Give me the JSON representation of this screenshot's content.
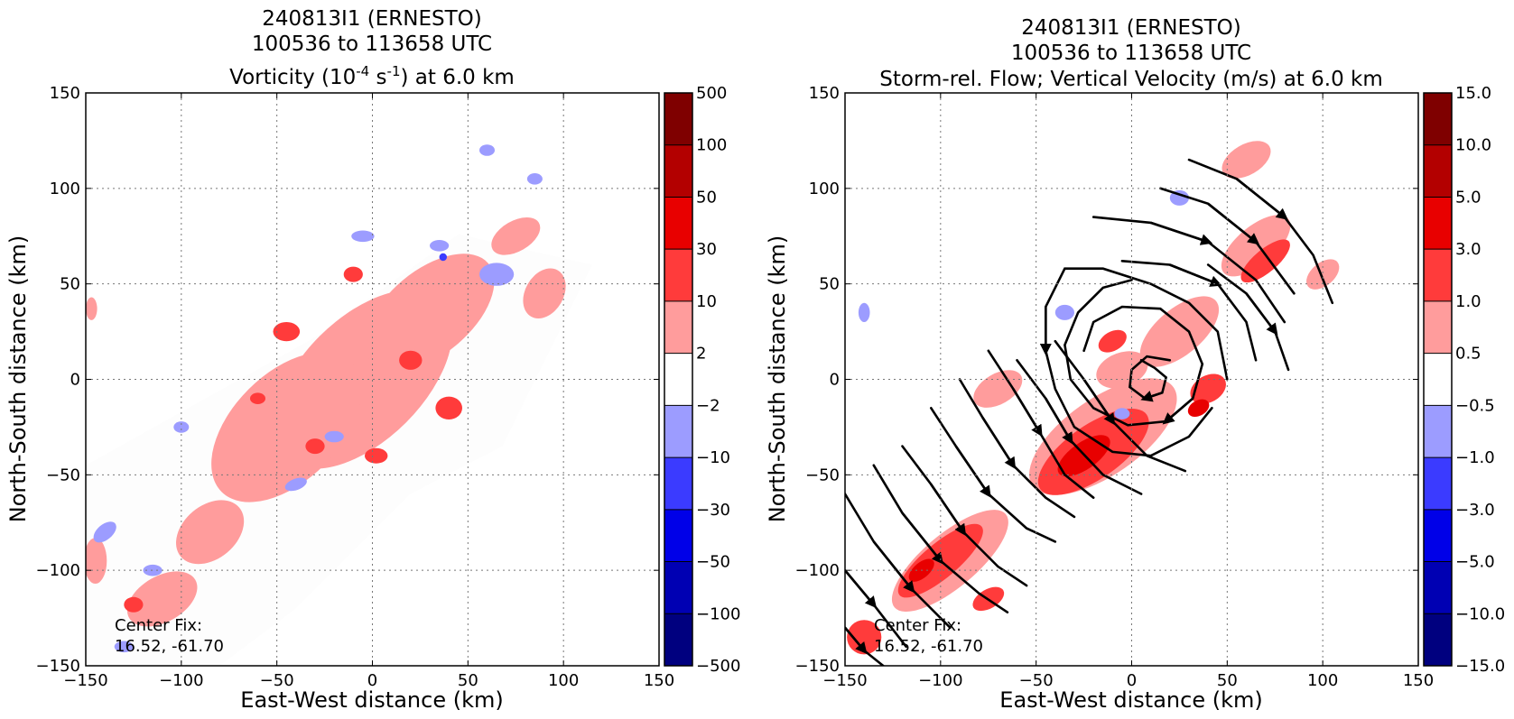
{
  "chart_data": [
    {
      "type": "heatmap",
      "title_lines": [
        "240813I1 (ERNESTO)",
        "100536 to 113658 UTC"
      ],
      "title_var_pre": "Vorticity (10",
      "title_var_sup1": "-4",
      "title_var_mid": " s",
      "title_var_sup2": "-1",
      "title_var_post": ") at 6.0 km",
      "xlabel": "East-West distance (km)",
      "ylabel": "North-South distance (km)",
      "xlim": [
        -150,
        150
      ],
      "ylim": [
        -150,
        150
      ],
      "x_ticks": [
        -150,
        -100,
        -50,
        0,
        50,
        100,
        150
      ],
      "y_ticks": [
        -150,
        -100,
        -50,
        0,
        50,
        100,
        150
      ],
      "x_tick_labels": [
        "−150",
        "−100",
        "−50",
        "0",
        "50",
        "100",
        "150"
      ],
      "y_tick_labels": [
        "−150",
        "−100",
        "−50",
        "0",
        "50",
        "100",
        "150"
      ],
      "grid": true,
      "colorbar_labels": [
        "500",
        "100",
        "50",
        "30",
        "10",
        "2",
        "−2",
        "−10",
        "−30",
        "−50",
        "−100",
        "−500"
      ],
      "center_fix_label": "Center Fix:",
      "center_fix_value": "16.52, -61.70",
      "data_region": [
        [
          -150,
          -150
        ],
        [
          -150,
          -45
        ],
        [
          -30,
          22
        ],
        [
          45,
          76
        ],
        [
          115,
          60
        ],
        [
          68,
          -35
        ],
        [
          20,
          -60
        ],
        [
          -40,
          -120
        ],
        [
          -80,
          -150
        ]
      ],
      "patches": [
        {
          "level": "2",
          "cx": -5,
          "cy": 0,
          "rx": 58,
          "ry": 32,
          "rot": 45
        },
        {
          "level": "2",
          "cx": -45,
          "cy": -25,
          "rx": 48,
          "ry": 28,
          "rot": 45
        },
        {
          "level": "2",
          "cx": 30,
          "cy": 35,
          "rx": 40,
          "ry": 22,
          "rot": 40
        },
        {
          "level": "2",
          "cx": -85,
          "cy": -80,
          "rx": 20,
          "ry": 14,
          "rot": 40
        },
        {
          "level": "2",
          "cx": -110,
          "cy": -115,
          "rx": 20,
          "ry": 12,
          "rot": 30
        },
        {
          "level": "2",
          "cx": 75,
          "cy": 75,
          "rx": 14,
          "ry": 8,
          "rot": 30
        },
        {
          "level": "2",
          "cx": 90,
          "cy": 45,
          "rx": 14,
          "ry": 10,
          "rot": 60
        },
        {
          "level": "2",
          "cx": -145,
          "cy": -95,
          "rx": 6,
          "ry": 12,
          "rot": 0
        },
        {
          "level": "2",
          "cx": -147,
          "cy": 37,
          "rx": 3,
          "ry": 6,
          "rot": 0
        },
        {
          "level": "10",
          "cx": -45,
          "cy": 25,
          "rx": 7,
          "ry": 5,
          "rot": 0
        },
        {
          "level": "10",
          "cx": 20,
          "cy": 10,
          "rx": 6,
          "ry": 5,
          "rot": 0
        },
        {
          "level": "10",
          "cx": -30,
          "cy": -35,
          "rx": 5,
          "ry": 4,
          "rot": 0
        },
        {
          "level": "10",
          "cx": 40,
          "cy": -15,
          "rx": 7,
          "ry": 6,
          "rot": 0
        },
        {
          "level": "10",
          "cx": 2,
          "cy": -40,
          "rx": 6,
          "ry": 4,
          "rot": 0
        },
        {
          "level": "10",
          "cx": -10,
          "cy": 55,
          "rx": 5,
          "ry": 4,
          "rot": 0
        },
        {
          "level": "10",
          "cx": -125,
          "cy": -118,
          "rx": 5,
          "ry": 4,
          "rot": 0
        },
        {
          "level": "10",
          "cx": -60,
          "cy": -10,
          "rx": 4,
          "ry": 3,
          "rot": 0
        },
        {
          "level": "-2",
          "cx": 65,
          "cy": 55,
          "rx": 9,
          "ry": 6,
          "rot": 0
        },
        {
          "level": "-2",
          "cx": -5,
          "cy": 75,
          "rx": 6,
          "ry": 3,
          "rot": 0
        },
        {
          "level": "-2",
          "cx": 85,
          "cy": 105,
          "rx": 4,
          "ry": 3,
          "rot": 0
        },
        {
          "level": "-2",
          "cx": 60,
          "cy": 120,
          "rx": 4,
          "ry": 3,
          "rot": 0
        },
        {
          "level": "-2",
          "cx": -100,
          "cy": -25,
          "rx": 4,
          "ry": 3,
          "rot": 0
        },
        {
          "level": "-2",
          "cx": -40,
          "cy": -55,
          "rx": 6,
          "ry": 3,
          "rot": 20
        },
        {
          "level": "-2",
          "cx": -140,
          "cy": -80,
          "rx": 7,
          "ry": 4,
          "rot": 40
        },
        {
          "level": "-2",
          "cx": -115,
          "cy": -100,
          "rx": 5,
          "ry": 3,
          "rot": 0
        },
        {
          "level": "-2",
          "cx": -130,
          "cy": -140,
          "rx": 5,
          "ry": 3,
          "rot": 0
        },
        {
          "level": "-2",
          "cx": -20,
          "cy": -30,
          "rx": 5,
          "ry": 3,
          "rot": 0
        },
        {
          "level": "-2",
          "cx": 35,
          "cy": 70,
          "rx": 5,
          "ry": 3,
          "rot": 0
        },
        {
          "level": "-10",
          "cx": 37,
          "cy": 64,
          "rx": 2,
          "ry": 2,
          "rot": 0
        }
      ]
    },
    {
      "type": "heatmap",
      "title_lines": [
        "240813I1 (ERNESTO)",
        "100536 to 113658 UTC",
        "Storm-rel. Flow; Vertical Velocity (m/s) at 6.0 km"
      ],
      "xlabel": "East-West distance (km)",
      "ylabel": "North-South distance (km)",
      "xlim": [
        -150,
        150
      ],
      "ylim": [
        -150,
        150
      ],
      "x_ticks": [
        -150,
        -100,
        -50,
        0,
        50,
        100,
        150
      ],
      "y_ticks": [
        -150,
        -100,
        -50,
        0,
        50,
        100,
        150
      ],
      "x_tick_labels": [
        "−150",
        "−100",
        "−50",
        "0",
        "50",
        "100",
        "150"
      ],
      "y_tick_labels": [
        "−150",
        "−100",
        "−50",
        "0",
        "50",
        "100",
        "150"
      ],
      "grid": true,
      "colorbar_labels": [
        "15.0",
        "10.0",
        "5.0",
        "3.0",
        "1.0",
        "0.5",
        "−0.5",
        "−1.0",
        "−3.0",
        "−5.0",
        "−10.0",
        "−15.0"
      ],
      "center_fix_label": "Center Fix:",
      "center_fix_value": "16.52, -61.70",
      "patches": [
        {
          "level": "0.5",
          "cx": -15,
          "cy": -30,
          "rx": 45,
          "ry": 20,
          "rot": 35
        },
        {
          "level": "0.5",
          "cx": -95,
          "cy": -95,
          "rx": 38,
          "ry": 14,
          "rot": 40
        },
        {
          "level": "0.5",
          "cx": 65,
          "cy": 70,
          "rx": 22,
          "ry": 10,
          "rot": 40
        },
        {
          "level": "0.5",
          "cx": 25,
          "cy": 25,
          "rx": 25,
          "ry": 12,
          "rot": 40
        },
        {
          "level": "0.5",
          "cx": -70,
          "cy": -5,
          "rx": 14,
          "ry": 8,
          "rot": 30
        },
        {
          "level": "0.5",
          "cx": 60,
          "cy": 115,
          "rx": 14,
          "ry": 8,
          "rot": 30
        },
        {
          "level": "0.5",
          "cx": -5,
          "cy": 5,
          "rx": 14,
          "ry": 9,
          "rot": 20
        },
        {
          "level": "0.5",
          "cx": 100,
          "cy": 55,
          "rx": 10,
          "ry": 6,
          "rot": 40
        },
        {
          "level": "1.0",
          "cx": -20,
          "cy": -38,
          "rx": 34,
          "ry": 14,
          "rot": 35
        },
        {
          "level": "1.0",
          "cx": -100,
          "cy": -95,
          "rx": 28,
          "ry": 9,
          "rot": 40
        },
        {
          "level": "1.0",
          "cx": 40,
          "cy": -5,
          "rx": 10,
          "ry": 7,
          "rot": 30
        },
        {
          "level": "1.0",
          "cx": 70,
          "cy": 62,
          "rx": 16,
          "ry": 6,
          "rot": 40
        },
        {
          "level": "1.0",
          "cx": -140,
          "cy": -135,
          "rx": 9,
          "ry": 9,
          "rot": 0
        },
        {
          "level": "1.0",
          "cx": -75,
          "cy": -115,
          "rx": 9,
          "ry": 5,
          "rot": 30
        },
        {
          "level": "1.0",
          "cx": -10,
          "cy": 20,
          "rx": 8,
          "ry": 5,
          "rot": 30
        },
        {
          "level": "3.0",
          "cx": -25,
          "cy": -40,
          "rx": 16,
          "ry": 7,
          "rot": 35
        },
        {
          "level": "3.0",
          "cx": 35,
          "cy": -15,
          "rx": 6,
          "ry": 4,
          "rot": 30
        },
        {
          "level": "3.0",
          "cx": -110,
          "cy": -100,
          "rx": 8,
          "ry": 4,
          "rot": 40
        },
        {
          "level": "-0.5",
          "cx": 25,
          "cy": 95,
          "rx": 5,
          "ry": 4,
          "rot": 0
        },
        {
          "level": "-0.5",
          "cx": -35,
          "cy": 35,
          "rx": 5,
          "ry": 4,
          "rot": 0
        },
        {
          "level": "-0.5",
          "cx": -5,
          "cy": -18,
          "rx": 4,
          "ry": 3,
          "rot": 0
        },
        {
          "level": "-0.5",
          "cx": -140,
          "cy": 35,
          "rx": 3,
          "ry": 5,
          "rot": 0
        }
      ],
      "streamlines": [
        [
          [
            5,
            10
          ],
          [
            12,
            6
          ],
          [
            18,
            1
          ],
          [
            16,
            -7
          ],
          [
            7,
            -10
          ],
          [
            -1,
            -4
          ],
          [
            0,
            5
          ],
          [
            8,
            12
          ],
          [
            20,
            10
          ]
        ],
        [
          [
            -25,
            15
          ],
          [
            -20,
            30
          ],
          [
            -5,
            38
          ],
          [
            15,
            37
          ],
          [
            30,
            25
          ],
          [
            37,
            8
          ],
          [
            32,
            -10
          ],
          [
            18,
            -22
          ],
          [
            -2,
            -24
          ],
          [
            -20,
            -15
          ],
          [
            -32,
            0
          ],
          [
            -35,
            18
          ],
          [
            -28,
            35
          ],
          [
            -15,
            48
          ],
          [
            0,
            52
          ]
        ],
        [
          [
            50,
            0
          ],
          [
            45,
            25
          ],
          [
            30,
            40
          ],
          [
            10,
            50
          ],
          [
            -15,
            58
          ],
          [
            -35,
            58
          ],
          [
            -45,
            38
          ],
          [
            -45,
            15
          ],
          [
            -40,
            -5
          ],
          [
            -30,
            -25
          ],
          [
            -10,
            -38
          ],
          [
            10,
            -40
          ],
          [
            30,
            -30
          ],
          [
            42,
            -15
          ]
        ],
        [
          [
            -5,
            62
          ],
          [
            20,
            60
          ],
          [
            45,
            50
          ],
          [
            60,
            30
          ],
          [
            65,
            10
          ]
        ],
        [
          [
            -20,
            85
          ],
          [
            10,
            82
          ],
          [
            40,
            72
          ],
          [
            65,
            52
          ],
          [
            80,
            30
          ]
        ],
        [
          [
            15,
            100
          ],
          [
            40,
            92
          ],
          [
            65,
            72
          ],
          [
            85,
            45
          ]
        ],
        [
          [
            30,
            115
          ],
          [
            55,
            105
          ],
          [
            80,
            85
          ],
          [
            95,
            65
          ],
          [
            105,
            40
          ]
        ],
        [
          [
            40,
            60
          ],
          [
            60,
            45
          ],
          [
            75,
            25
          ],
          [
            82,
            5
          ]
        ],
        [
          [
            -75,
            15
          ],
          [
            -62,
            -5
          ],
          [
            -48,
            -28
          ],
          [
            -35,
            -50
          ],
          [
            -20,
            -62
          ]
        ],
        [
          [
            -90,
            0
          ],
          [
            -78,
            -20
          ],
          [
            -62,
            -45
          ],
          [
            -45,
            -62
          ],
          [
            -30,
            -72
          ]
        ],
        [
          [
            -105,
            -15
          ],
          [
            -92,
            -35
          ],
          [
            -75,
            -60
          ],
          [
            -55,
            -78
          ],
          [
            -40,
            -85
          ]
        ],
        [
          [
            -120,
            -35
          ],
          [
            -105,
            -55
          ],
          [
            -88,
            -80
          ],
          [
            -70,
            -98
          ],
          [
            -55,
            -108
          ]
        ],
        [
          [
            -135,
            -45
          ],
          [
            -120,
            -70
          ],
          [
            -100,
            -95
          ],
          [
            -80,
            -112
          ],
          [
            -65,
            -122
          ]
        ],
        [
          [
            -150,
            -60
          ],
          [
            -135,
            -85
          ],
          [
            -115,
            -110
          ],
          [
            -95,
            -130
          ]
        ],
        [
          [
            -150,
            -100
          ],
          [
            -135,
            -118
          ],
          [
            -118,
            -140
          ]
        ],
        [
          [
            -150,
            -130
          ],
          [
            -140,
            -142
          ],
          [
            -130,
            -150
          ]
        ],
        [
          [
            -60,
            10
          ],
          [
            -45,
            -10
          ],
          [
            -32,
            -32
          ],
          [
            -15,
            -50
          ],
          [
            5,
            -60
          ]
        ],
        [
          [
            -40,
            20
          ],
          [
            -25,
            0
          ],
          [
            -10,
            -22
          ],
          [
            8,
            -40
          ],
          [
            28,
            -48
          ]
        ]
      ]
    }
  ]
}
